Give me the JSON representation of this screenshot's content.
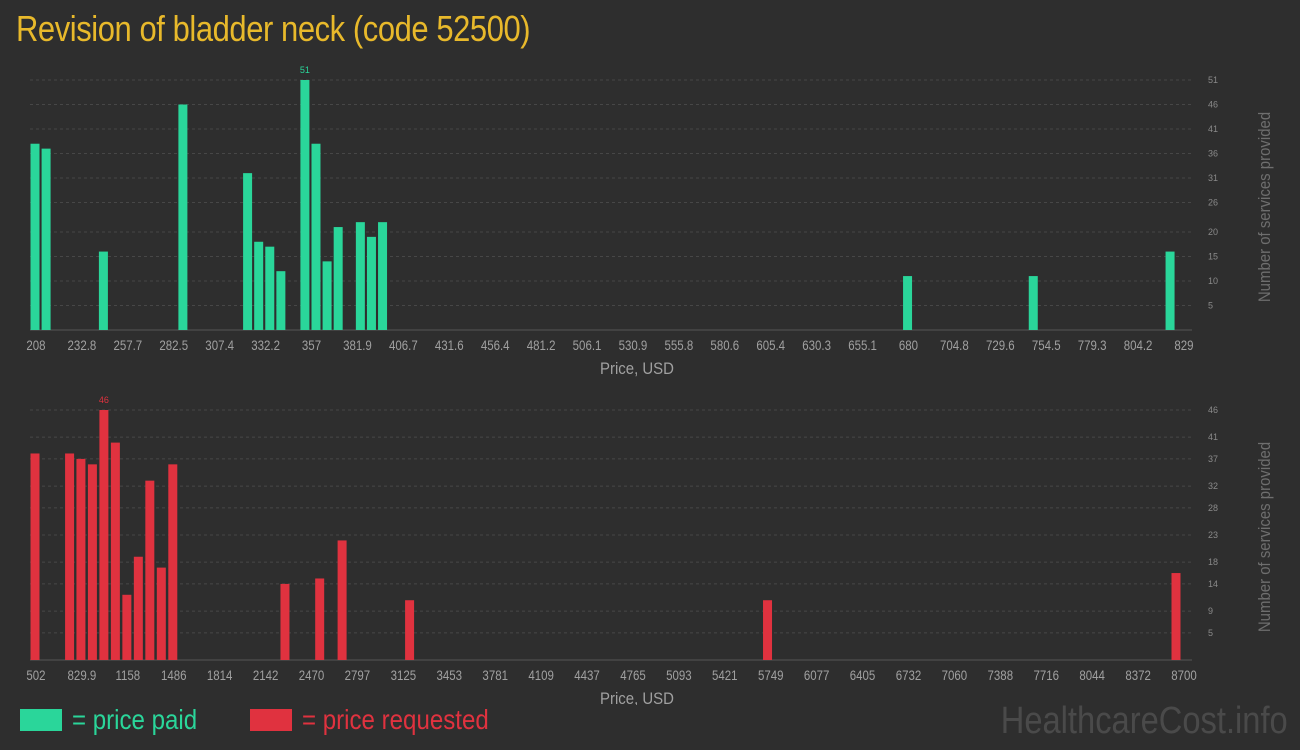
{
  "page": {
    "title": "Revision of bladder neck (code 52500)",
    "watermark": "HealthcareCost.info",
    "legend": [
      {
        "label": "= price paid",
        "color": "#2ad69a"
      },
      {
        "label": "= price requested",
        "color": "#e0323f"
      }
    ]
  },
  "chart_data": [
    {
      "type": "bar",
      "title": "",
      "xlabel": "Price, USD",
      "ylabel": "Number of services provided",
      "color": "#2ad69a",
      "ylim": [
        0,
        51
      ],
      "yticks": [
        5,
        10,
        15,
        20,
        26,
        31,
        36,
        41,
        46,
        51
      ],
      "xlim": [
        208,
        829
      ],
      "xticks": [
        "208",
        "232.8",
        "257.7",
        "282.5",
        "307.4",
        "332.2",
        "357",
        "381.9",
        "406.7",
        "431.6",
        "456.4",
        "481.2",
        "506.1",
        "530.9",
        "555.8",
        "580.6",
        "605.4",
        "630.3",
        "655.1",
        "680",
        "704.8",
        "729.6",
        "754.5",
        "779.3",
        "804.2",
        "829"
      ],
      "peak_label": "51",
      "x": [
        208,
        214,
        245,
        288,
        323,
        329,
        335,
        341,
        354,
        360,
        366,
        372,
        384,
        390,
        396,
        680,
        748,
        822
      ],
      "values": [
        38,
        37,
        16,
        46,
        32,
        18,
        17,
        12,
        51,
        38,
        14,
        21,
        22,
        19,
        22,
        11,
        11,
        16
      ]
    },
    {
      "type": "bar",
      "title": "",
      "xlabel": "Price, USD",
      "ylabel": "Number of services provided",
      "color": "#e0323f",
      "ylim": [
        0,
        46
      ],
      "yticks": [
        5,
        9,
        14,
        18,
        23,
        28,
        32,
        37,
        41,
        46
      ],
      "xlim": [
        502,
        8700
      ],
      "xticks": [
        "502",
        "829.9",
        "1158",
        "1486",
        "1814",
        "2142",
        "2470",
        "2797",
        "3125",
        "3453",
        "3781",
        "4109",
        "4437",
        "4765",
        "5093",
        "5421",
        "5749",
        "6077",
        "6405",
        "6732",
        "7060",
        "7388",
        "7716",
        "8044",
        "8372",
        "8700"
      ],
      "peak_label": "46",
      "x": [
        502,
        749,
        830,
        912,
        994,
        1076,
        1158,
        1240,
        1322,
        1404,
        1486,
        2287,
        2535,
        2695,
        3177,
        5733,
        8650
      ],
      "values": [
        38,
        38,
        37,
        36,
        46,
        40,
        12,
        19,
        33,
        17,
        36,
        14,
        15,
        22,
        11,
        11,
        16
      ]
    }
  ]
}
